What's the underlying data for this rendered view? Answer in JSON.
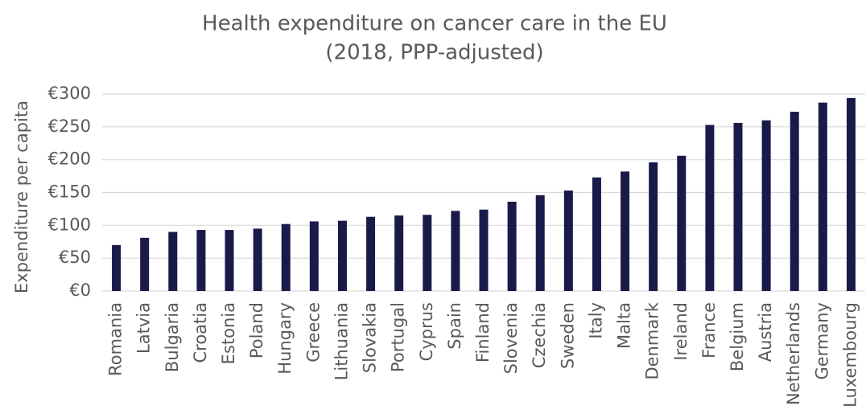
{
  "chart_data": {
    "type": "bar",
    "title": "Health expenditure on cancer care in the EU",
    "subtitle": "(2018, PPP-adjusted)",
    "y_label": "Expenditure per capita",
    "categories": [
      "Romania",
      "Latvia",
      "Bulgaria",
      "Croatia",
      "Estonia",
      "Poland",
      "Hungary",
      "Greece",
      "Lithuania",
      "Slovakia",
      "Portugal",
      "Cyprus",
      "Spain",
      "Finland",
      "Slovenia",
      "Czechia",
      "Sweden",
      "Italy",
      "Malta",
      "Denmark",
      "Ireland",
      "France",
      "Belgium",
      "Austria",
      "Netherlands",
      "Germany",
      "Luxembourg"
    ],
    "values": [
      70,
      81,
      90,
      93,
      93,
      95,
      102,
      106,
      107,
      113,
      115,
      116,
      122,
      124,
      136,
      146,
      153,
      173,
      182,
      196,
      206,
      253,
      256,
      260,
      273,
      287,
      294
    ],
    "color": "#1a1a4a",
    "ylim": [
      0,
      300
    ],
    "yticks": [
      {
        "value": 0,
        "label": "€0"
      },
      {
        "value": 50,
        "label": "€50"
      },
      {
        "value": 100,
        "label": "€100"
      },
      {
        "value": 150,
        "label": "€150"
      },
      {
        "value": 200,
        "label": "€200"
      },
      {
        "value": 250,
        "label": "€250"
      },
      {
        "value": 300,
        "label": "€300"
      }
    ],
    "grid": true
  }
}
